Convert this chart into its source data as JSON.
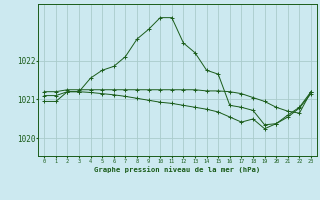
{
  "title": "Graphe pression niveau de la mer (hPa)",
  "background_color": "#cce9f0",
  "grid_color": "#aacccc",
  "line_color": "#1a5c1a",
  "yticks": [
    1020,
    1021,
    1022
  ],
  "ylim": [
    1019.55,
    1023.45
  ],
  "xlim": [
    -0.5,
    23.5
  ],
  "s1": [
    1020.95,
    1020.95,
    1021.2,
    1021.2,
    1021.55,
    1021.75,
    1021.85,
    1022.1,
    1022.55,
    1022.8,
    1023.1,
    1023.1,
    1022.45,
    1022.2,
    1021.75,
    1021.65,
    1020.85,
    1020.8,
    1020.72,
    1020.35,
    1020.38,
    1020.6,
    1020.8,
    1021.2
  ],
  "s2": [
    1021.2,
    1021.2,
    1021.25,
    1021.25,
    1021.25,
    1021.25,
    1021.25,
    1021.25,
    1021.25,
    1021.25,
    1021.25,
    1021.25,
    1021.25,
    1021.25,
    1021.22,
    1021.22,
    1021.2,
    1021.15,
    1021.05,
    1020.95,
    1020.8,
    1020.7,
    1020.65,
    1021.2
  ],
  "s3": [
    1021.1,
    1021.1,
    1021.2,
    1021.2,
    1021.18,
    1021.15,
    1021.12,
    1021.08,
    1021.03,
    1020.98,
    1020.93,
    1020.9,
    1020.85,
    1020.8,
    1020.75,
    1020.68,
    1020.55,
    1020.42,
    1020.5,
    1020.25,
    1020.38,
    1020.55,
    1020.78,
    1021.15
  ]
}
